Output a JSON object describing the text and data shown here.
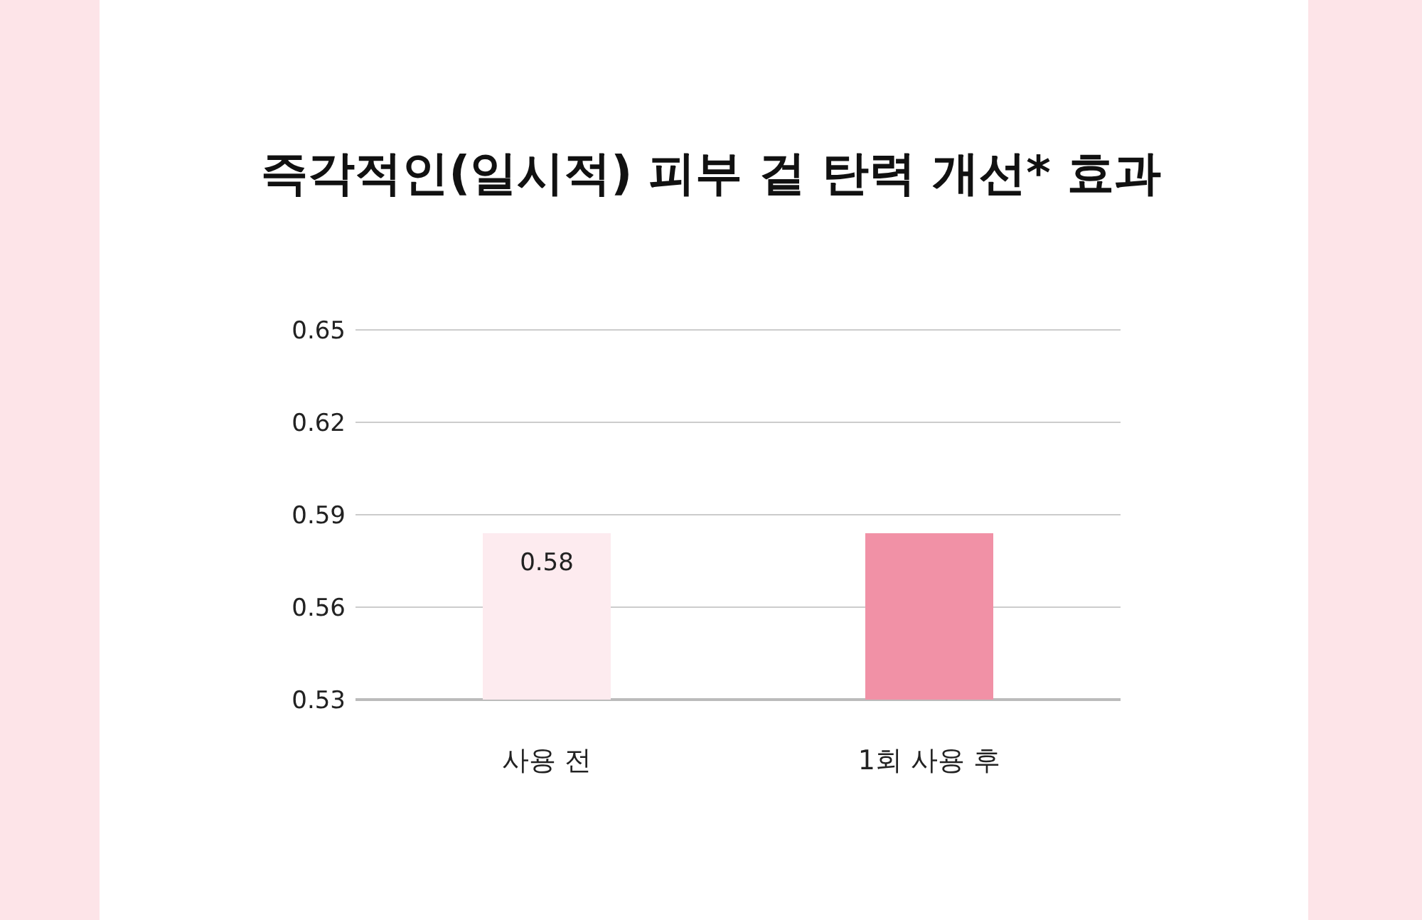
{
  "chart_data": {
    "type": "bar",
    "title": "즉각적인(일시적) 피부 겉 탄력 개선* 효과",
    "categories": [
      "사용 전",
      "1회 사용 후"
    ],
    "values": [
      0.584,
      0.584
    ],
    "colors": [
      "#fdebef",
      "#f191a6"
    ],
    "value_labels": [
      "0.58",
      null
    ],
    "ylim": [
      0.53,
      0.65
    ],
    "yticks": [
      0.53,
      0.56,
      0.59,
      0.62,
      0.65
    ],
    "grid": "y"
  }
}
